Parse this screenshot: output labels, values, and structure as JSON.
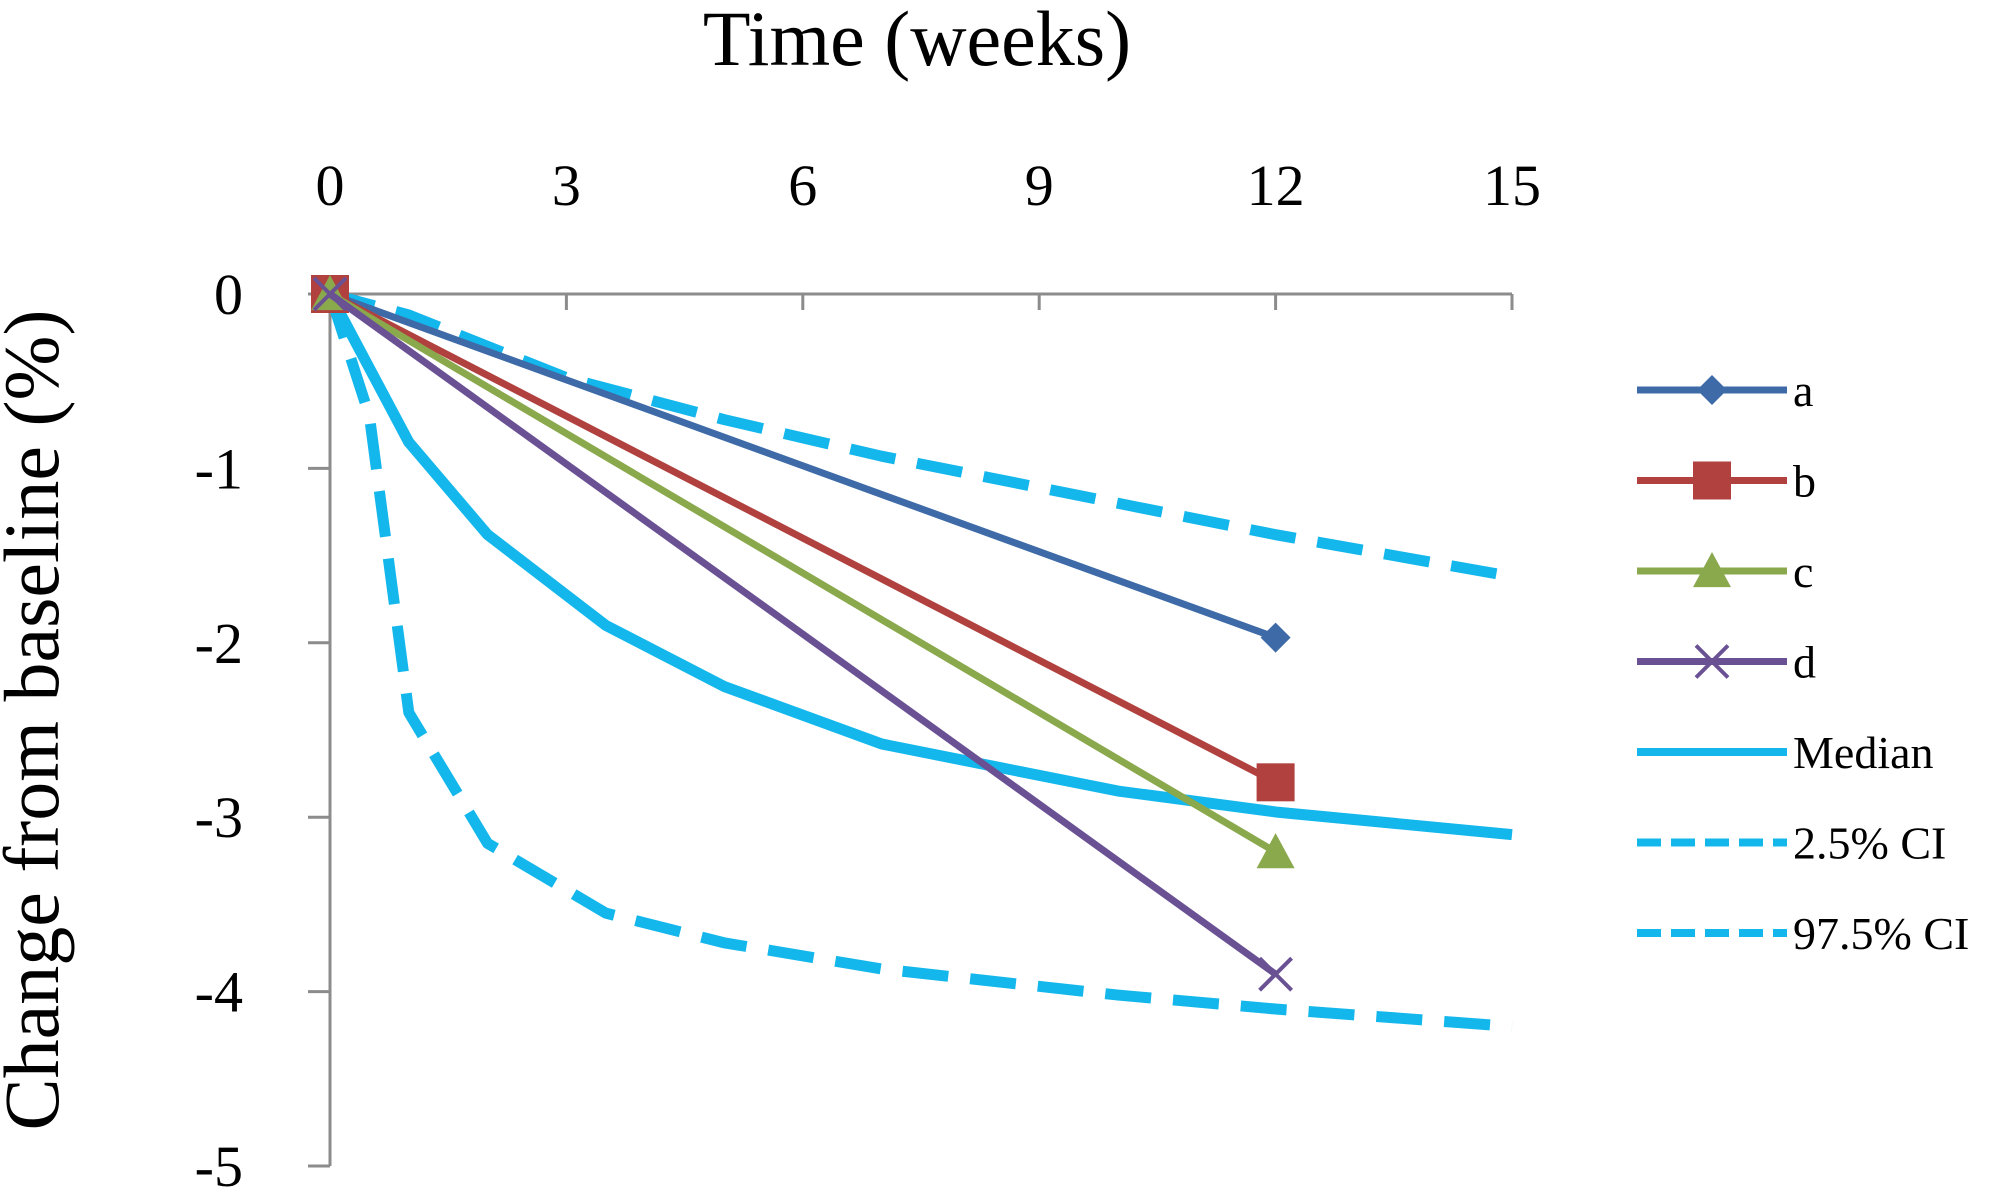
{
  "chart_data": {
    "type": "line",
    "title": "",
    "xlabel": "Time (weeks)",
    "ylabel": "Change from baseline (%)",
    "xlim": [
      0,
      15
    ],
    "ylim": [
      -5,
      0
    ],
    "x_ticks": [
      "0",
      "3",
      "6",
      "9",
      "12",
      "15"
    ],
    "y_ticks": [
      "0",
      "-1",
      "-2",
      "-3",
      "-4",
      "-5"
    ],
    "x_axis_position": "top",
    "grid": false,
    "legend_position": "right",
    "series": [
      {
        "name": "a",
        "color": "#3E6BA8",
        "marker": "diamond",
        "style": "solid",
        "points": [
          [
            0,
            0
          ],
          [
            12,
            -1.97
          ]
        ]
      },
      {
        "name": "b",
        "color": "#B0413E",
        "marker": "square",
        "style": "solid",
        "points": [
          [
            0,
            0
          ],
          [
            12,
            -2.8
          ]
        ]
      },
      {
        "name": "c",
        "color": "#8AA84C",
        "marker": "triangle",
        "style": "solid",
        "points": [
          [
            0,
            0
          ],
          [
            12,
            -3.2
          ]
        ]
      },
      {
        "name": "d",
        "color": "#6A5194",
        "marker": "x",
        "style": "solid",
        "points": [
          [
            0,
            0
          ],
          [
            12,
            -3.9
          ]
        ]
      },
      {
        "name": "Median",
        "color": "#14B7EC",
        "marker": "none",
        "style": "solid",
        "points": [
          [
            0,
            0
          ],
          [
            1,
            -0.85
          ],
          [
            2,
            -1.38
          ],
          [
            3.5,
            -1.9
          ],
          [
            5,
            -2.25
          ],
          [
            7,
            -2.58
          ],
          [
            10,
            -2.85
          ],
          [
            12,
            -2.97
          ],
          [
            15,
            -3.1
          ]
        ]
      },
      {
        "name": "2.5% CI",
        "color": "#14B7EC",
        "marker": "none",
        "style": "dashed",
        "points": [
          [
            0,
            0
          ],
          [
            0.5,
            -0.7
          ],
          [
            1,
            -2.4
          ],
          [
            2,
            -3.15
          ],
          [
            3.5,
            -3.55
          ],
          [
            5,
            -3.72
          ],
          [
            7,
            -3.87
          ],
          [
            10,
            -4.02
          ],
          [
            12,
            -4.1
          ],
          [
            15,
            -4.2
          ]
        ]
      },
      {
        "name": "97.5% CI",
        "color": "#14B7EC",
        "marker": "none",
        "style": "dashed",
        "points": [
          [
            0,
            0
          ],
          [
            1,
            -0.12
          ],
          [
            2,
            -0.3
          ],
          [
            3,
            -0.48
          ],
          [
            5,
            -0.72
          ],
          [
            7,
            -0.93
          ],
          [
            10,
            -1.2
          ],
          [
            12,
            -1.38
          ],
          [
            15,
            -1.62
          ]
        ]
      }
    ]
  }
}
